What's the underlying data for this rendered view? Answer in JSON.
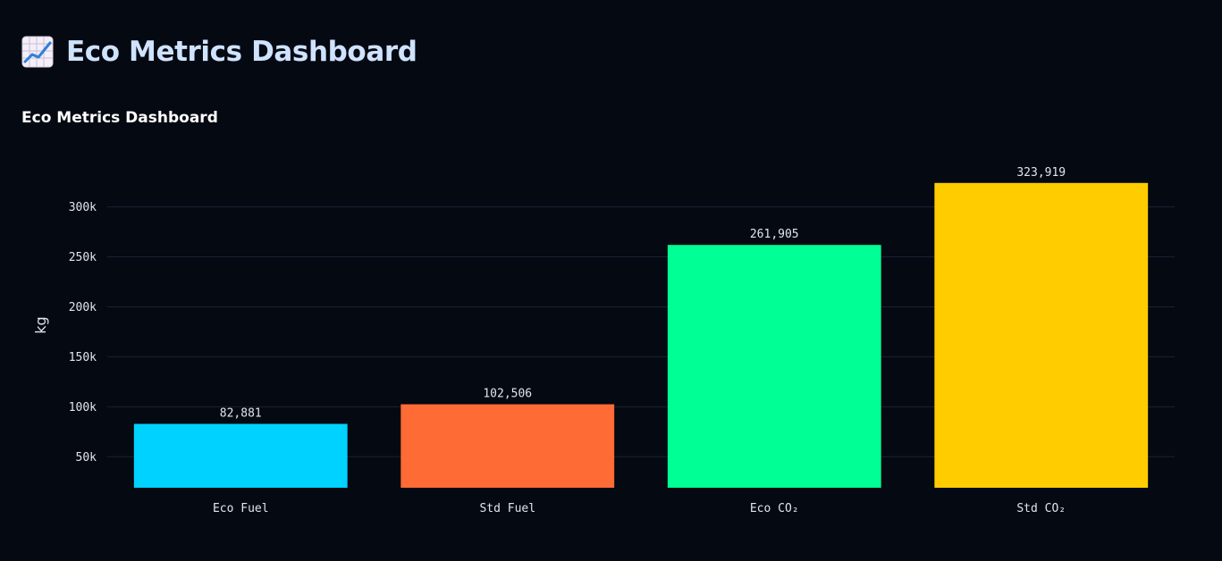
{
  "app": {
    "title": "Eco Metrics Dashboard",
    "icon": "chart-increasing-icon"
  },
  "chart_data": {
    "type": "bar",
    "title": "Eco Metrics Dashboard",
    "categories": [
      "Eco Fuel",
      "Std Fuel",
      "Eco CO₂",
      "Std CO₂"
    ],
    "values": [
      82881,
      102506,
      261905,
      323919
    ],
    "data_labels": [
      "82,881",
      "102,506",
      "261,905",
      "323,919"
    ],
    "colors": [
      "#00d2ff",
      "#ff6b35",
      "#00ff94",
      "#ffcc00"
    ],
    "ylabel": "kg",
    "xlabel": "",
    "ylim": [
      19000,
      330000
    ],
    "yticks": [
      50000,
      100000,
      150000,
      200000,
      250000,
      300000
    ],
    "ytick_labels": [
      "50k",
      "100k",
      "150k",
      "200k",
      "250k",
      "300k"
    ],
    "grid": true,
    "legend": "none",
    "background": "#050912",
    "grid_color": "#1a2233"
  }
}
